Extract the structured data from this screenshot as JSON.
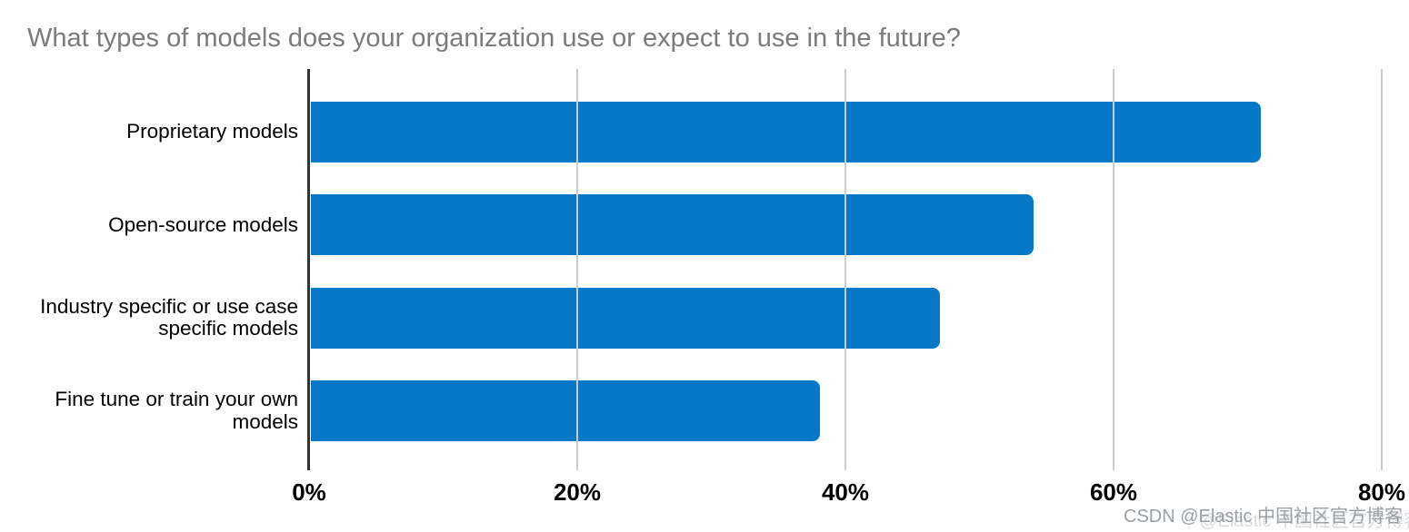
{
  "title": "What types of models does your organization use or expect to use in the future?",
  "chart_data": {
    "type": "bar",
    "orientation": "horizontal",
    "title": "What types of models does your organization use or expect to use in the future?",
    "categories": [
      "Proprietary models",
      "Open-source models",
      "Industry specific or use case specific models",
      "Fine tune or train your own models"
    ],
    "values": [
      71,
      54,
      47,
      38
    ],
    "unit": "%",
    "xlabel": "",
    "ylabel": "",
    "xlim": [
      0,
      80
    ],
    "x_ticks": [
      "0%",
      "20%",
      "40%",
      "60%",
      "80%"
    ],
    "x_tick_values": [
      0,
      20,
      40,
      60,
      80
    ],
    "grid": true,
    "legend": "none",
    "bar_color": "#0777C8",
    "gridline_color": "#cccccc",
    "axis_line_color": "#333333",
    "title_color": "#7b7b7b",
    "tick_label_color": "#000000",
    "category_label_color": "#000000"
  },
  "watermark": {
    "text": "CSDN @Elastic 中国社区官方博客",
    "ghost_text": "@Elastic 中国社区官方博客",
    "color": "#9aa0a6"
  }
}
